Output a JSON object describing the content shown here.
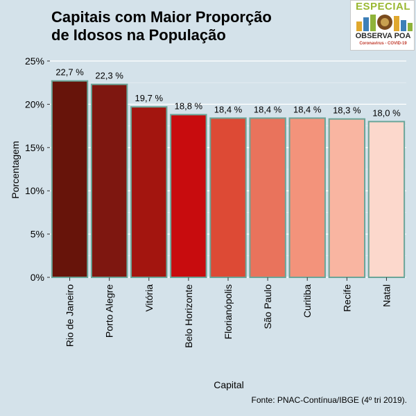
{
  "title_line1": "Capitais com Maior Proporção",
  "title_line2": "de Idosos na População",
  "logo": {
    "top": "ESPECIAL",
    "name": "OBSERVA POA",
    "sub": "Coronavirus - COVID-19"
  },
  "source": "Fonte: PNAC-Contínua/IBGE (4º tri 2019).",
  "chart_data": {
    "type": "bar",
    "title": "Capitais com Maior Proporção de Idosos na População",
    "xlabel": "Capital",
    "ylabel": "Porcentagem",
    "ylim": [
      0,
      25
    ],
    "yticks": [
      0,
      5,
      10,
      15,
      20,
      25
    ],
    "ytick_labels": [
      "0%",
      "5%",
      "10%",
      "15%",
      "20%",
      "25%"
    ],
    "grid": true,
    "legend": "none",
    "categories": [
      "Rio de Janeiro",
      "Porto Alegre",
      "Vitória",
      "Belo Horizonte",
      "Florianópolis",
      "São Paulo",
      "Curitiba",
      "Recife",
      "Natal"
    ],
    "values": [
      22.7,
      22.3,
      19.7,
      18.8,
      18.4,
      18.4,
      18.4,
      18.3,
      18.0
    ],
    "value_labels": [
      "22,7 %",
      "22,3 %",
      "19,7 %",
      "18,8 %",
      "18,4 %",
      "18,4 %",
      "18,4 %",
      "18,3 %",
      "18,0 %"
    ],
    "colors": [
      "#67140a",
      "#7e1710",
      "#a3150f",
      "#c80c0e",
      "#dd4a35",
      "#e9735c",
      "#f3937b",
      "#f9b5a1",
      "#fcd8cc"
    ],
    "bar_border_color": "#6aa598",
    "background_color": "#d4e2ea",
    "grid_color": "#ffffff"
  }
}
